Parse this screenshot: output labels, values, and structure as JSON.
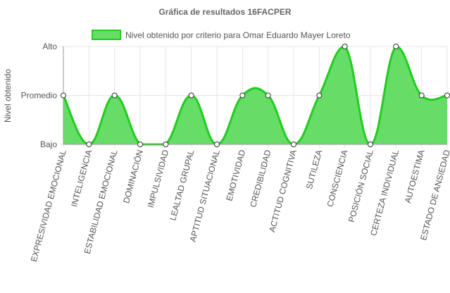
{
  "chart_data": {
    "type": "area",
    "title": "Gráfica de resultados 16FACPER",
    "xlabel": "",
    "ylabel": "Nivel obtenido",
    "y_levels": [
      "Bajo",
      "Promedio",
      "Alto"
    ],
    "ylim": [
      0,
      2
    ],
    "grid": true,
    "legend_position": "top",
    "categories": [
      "EXPRESIVIDAD EMOCIONAL",
      "INTELIGENCIA",
      "ESTABILIDAD EMOCIONAL",
      "DOMINACIÓN",
      "IMPULSIVIDAD",
      "LEALTAD GRUPAL",
      "APTITUD SITUACIONAL",
      "EMOTIVIDAD",
      "CREDIBILIDAD",
      "ACTITUD COGNITIVA",
      "SUTILEZA",
      "CONSCIENCIA",
      "POSICIÓN SOCIAL",
      "CERTEZA INDIVIDUAL",
      "AUTOESTIMA",
      "ESTADO DE ANSIEDAD"
    ],
    "series": [
      {
        "name": "Nivel obtenido por criterio para Omar Eduardo Mayer Loreto",
        "values": [
          1,
          0,
          1,
          0,
          0,
          1,
          0,
          1,
          1,
          0,
          1,
          2,
          0,
          2,
          1,
          1
        ]
      }
    ],
    "colors": {
      "fill": "#66dd66",
      "stroke": "#22cc22",
      "point_fill": "#ffffff",
      "point_stroke": "#333333",
      "grid": "#e6e6e6",
      "axis": "#999999",
      "text": "#555555",
      "title": "#666666"
    }
  }
}
